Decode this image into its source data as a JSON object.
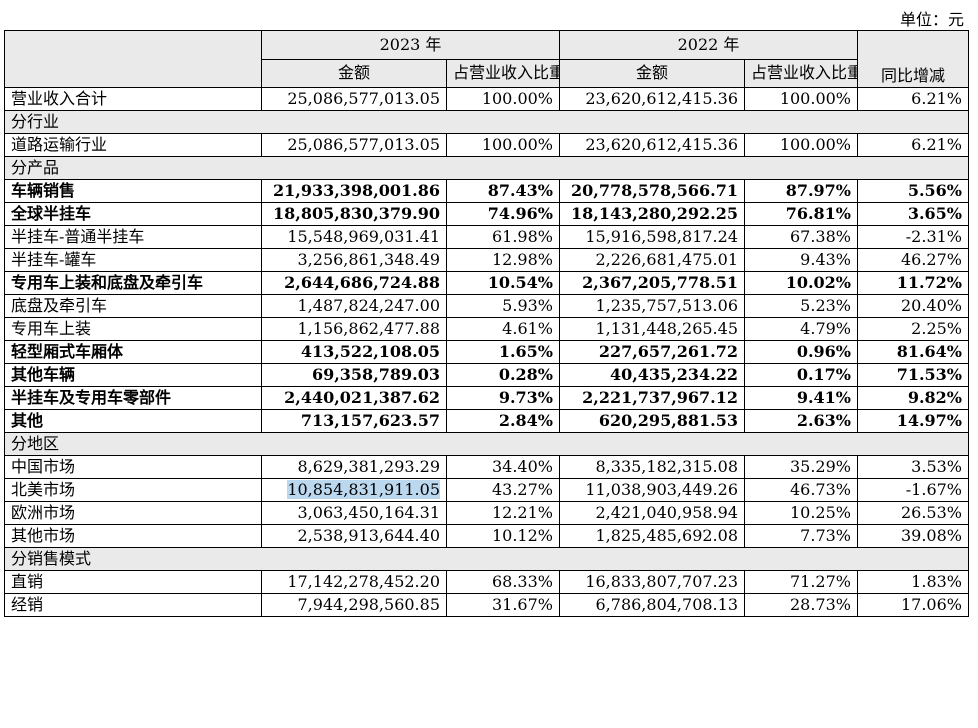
{
  "unit_label": "单位：元",
  "headers": {
    "year_2023": "2023 年",
    "year_2022": "2022 年",
    "amount": "金额",
    "share": "占营业收入比重",
    "yoy": "同比增减"
  },
  "total": {
    "label": "营业收入合计",
    "a23": "25,086,577,013.05",
    "p23": "100.00%",
    "a22": "23,620,612,415.36",
    "p22": "100.00%",
    "yoy": "6.21%"
  },
  "sections": {
    "industry": "分行业",
    "product": "分产品",
    "region": "分地区",
    "sales_mode": "分销售模式"
  },
  "industry_rows": [
    {
      "label": "道路运输行业",
      "a23": "25,086,577,013.05",
      "p23": "100.00%",
      "a22": "23,620,612,415.36",
      "p22": "100.00%",
      "yoy": "6.21%"
    }
  ],
  "product_rows": [
    {
      "label": "车辆销售",
      "a23": "21,933,398,001.86",
      "p23": "87.43%",
      "a22": "20,778,578,566.71",
      "p22": "87.97%",
      "yoy": "5.56%"
    },
    {
      "label": "全球半挂车",
      "a23": "18,805,830,379.90",
      "p23": "74.96%",
      "a22": "18,143,280,292.25",
      "p22": "76.81%",
      "yoy": "3.65%"
    },
    {
      "label": "半挂车-普通半挂车",
      "a23": "15,548,969,031.41",
      "p23": "61.98%",
      "a22": "15,916,598,817.24",
      "p22": "67.38%",
      "yoy": "-2.31%"
    },
    {
      "label": "半挂车-罐车",
      "a23": "3,256,861,348.49",
      "p23": "12.98%",
      "a22": "2,226,681,475.01",
      "p22": "9.43%",
      "yoy": "46.27%"
    },
    {
      "label": "专用车上装和底盘及牵引车",
      "a23": "2,644,686,724.88",
      "p23": "10.54%",
      "a22": "2,367,205,778.51",
      "p22": "10.02%",
      "yoy": "11.72%"
    },
    {
      "label": "底盘及牵引车",
      "a23": "1,487,824,247.00",
      "p23": "5.93%",
      "a22": "1,235,757,513.06",
      "p22": "5.23%",
      "yoy": "20.40%"
    },
    {
      "label": "专用车上装",
      "a23": "1,156,862,477.88",
      "p23": "4.61%",
      "a22": "1,131,448,265.45",
      "p22": "4.79%",
      "yoy": "2.25%"
    },
    {
      "label": "轻型厢式车厢体",
      "a23": "413,522,108.05",
      "p23": "1.65%",
      "a22": "227,657,261.72",
      "p22": "0.96%",
      "yoy": "81.64%"
    },
    {
      "label": "其他车辆",
      "a23": "69,358,789.03",
      "p23": "0.28%",
      "a22": "40,435,234.22",
      "p22": "0.17%",
      "yoy": "71.53%"
    },
    {
      "label": "半挂车及专用车零部件",
      "a23": "2,440,021,387.62",
      "p23": "9.73%",
      "a22": "2,221,737,967.12",
      "p22": "9.41%",
      "yoy": "9.82%"
    },
    {
      "label": "其他",
      "a23": "713,157,623.57",
      "p23": "2.84%",
      "a22": "620,295,881.53",
      "p22": "2.63%",
      "yoy": "14.97%"
    }
  ],
  "region_rows": [
    {
      "label": "中国市场",
      "a23": "8,629,381,293.29",
      "p23": "34.40%",
      "a22": "8,335,182,315.08",
      "p22": "35.29%",
      "yoy": "3.53%"
    },
    {
      "label": "北美市场",
      "a23": "10,854,831,911.05",
      "p23": "43.27%",
      "a22": "11,038,903,449.26",
      "p22": "46.73%",
      "yoy": "-1.67%"
    },
    {
      "label": "欧洲市场",
      "a23": "3,063,450,164.31",
      "p23": "12.21%",
      "a22": "2,421,040,958.94",
      "p22": "10.25%",
      "yoy": "26.53%"
    },
    {
      "label": "其他市场",
      "a23": "2,538,913,644.40",
      "p23": "10.12%",
      "a22": "1,825,485,692.08",
      "p22": "7.73%",
      "yoy": "39.08%"
    }
  ],
  "sales_rows": [
    {
      "label": "直销",
      "a23": "17,142,278,452.20",
      "p23": "68.33%",
      "a22": "16,833,807,707.23",
      "p22": "71.27%",
      "yoy": "1.83%"
    },
    {
      "label": "经销",
      "a23": "7,944,298,560.85",
      "p23": "31.67%",
      "a22": "6,786,804,708.13",
      "p22": "28.73%",
      "yoy": "17.06%"
    }
  ],
  "colors": {
    "header_bg": "#eaeaea",
    "highlight": "#bcd8ef"
  }
}
